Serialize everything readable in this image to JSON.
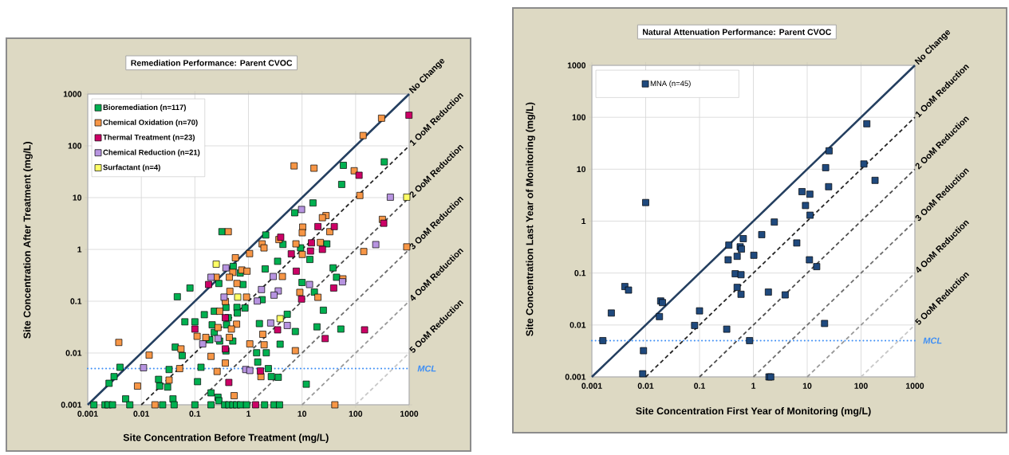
{
  "chart_data": [
    {
      "type": "scatter",
      "title": "Remediation Performance: Parent CVOC",
      "xlabel": "Site Concentration Before Treatment (mg/L)",
      "ylabel": "Site Concentration After Treatment (mg/L)",
      "log": "xy",
      "grid": true,
      "legend": "top left",
      "marker": "square",
      "xlim": [
        0.001,
        1000
      ],
      "ylim": [
        0.001,
        1000
      ],
      "xticks": [
        0.001,
        0.01,
        0.1,
        1,
        10,
        100,
        1000
      ],
      "yticks": [
        0.001,
        0.01,
        0.1,
        1,
        10,
        100,
        1000
      ],
      "series": [
        {
          "name": "Bioremediation (n=117)",
          "color": "#00b050",
          "x": [
            0.32,
            0.52,
            0.7,
            0.28,
            0.79,
            0.081,
            0.047,
            0.38,
            0.61,
            0.86,
            0.23,
            0.62,
            0.15,
            0.42,
            0.065,
            0.1,
            0.21,
            0.39,
            0.23,
            0.19,
            0.29,
            0.51,
            0.043,
            0.38,
            0.058,
            0.004,
            0.13,
            0.033,
            0.0031,
            0.021,
            0.112,
            0.0025,
            0.022,
            0.031,
            0.2,
            0.27,
            0.0051,
            0.039,
            0.28,
            0.0013,
            0.0021,
            0.0024,
            0.0029,
            0.0061,
            0.025,
            0.041,
            0.1,
            0.2,
            0.36,
            0.43,
            0.51,
            0.6,
            0.71,
            0.92,
            59,
            343,
            55,
            16,
            7.3,
            2.1,
            4.4,
            9.4,
            29,
            14,
            3.5,
            38,
            44,
            2.05,
            10,
            17,
            1.8,
            25,
            5.3,
            7.5,
            19,
            53,
            1.6,
            3.9,
            1.42,
            2.15,
            1.49,
            2.35,
            2.67,
            3.6,
            12,
            2.0,
            3.0,
            3.8
          ],
          "values": [
            2.2,
            0.47,
            0.35,
            0.22,
            0.21,
            0.18,
            0.122,
            0.076,
            0.076,
            0.074,
            0.064,
            0.059,
            0.055,
            0.048,
            0.04,
            0.04,
            0.035,
            0.035,
            0.025,
            0.018,
            0.017,
            0.017,
            0.013,
            0.011,
            0.0089,
            0.0053,
            0.0053,
            0.0048,
            0.0035,
            0.0031,
            0.0028,
            0.0026,
            0.0023,
            0.0022,
            0.0017,
            0.0014,
            0.0013,
            0.0013,
            0.0012,
            0.001,
            0.001,
            0.001,
            0.001,
            0.001,
            0.001,
            0.001,
            0.001,
            0.001,
            0.001,
            0.001,
            0.001,
            0.001,
            0.001,
            0.001,
            42,
            49,
            18,
            7.9,
            5.1,
            1.9,
            1.25,
            1.07,
            1.28,
            0.64,
            0.59,
            0.44,
            0.29,
            0.42,
            0.23,
            0.15,
            0.107,
            0.067,
            0.056,
            0.026,
            0.032,
            0.029,
            0.037,
            0.0148,
            0.0101,
            0.0101,
            0.0067,
            0.005,
            0.0035,
            0.0034,
            0.0025,
            0.001,
            0.001,
            0.001
          ]
        },
        {
          "name": "Chemical Oxidation (n=70)",
          "color": "#f79646",
          "x": [
            0.42,
            0.57,
            0.51,
            0.75,
            0.94,
            0.25,
            0.44,
            0.61,
            0.45,
            0.92,
            0.37,
            0.29,
            0.6,
            0.27,
            0.48,
            0.11,
            0.16,
            0.44,
            0.0038,
            0.055,
            0.014,
            0.2,
            0.37,
            0.052,
            0.26,
            0.033,
            0.0085,
            0.54,
            0.018,
            305,
            138,
            7.1,
            16.7,
            94,
            120,
            28,
            24,
            10.3,
            10.1,
            33,
            316,
            3.7,
            7.7,
            22,
            10.1,
            1.05,
            1.8,
            1.95,
            142,
            900,
            58,
            4.3,
            9.1,
            19.8,
            1.85,
            1.06,
            1.96,
            7.5,
            1.71,
            41
          ],
          "values": [
            2.2,
            0.69,
            0.36,
            0.4,
            0.38,
            0.29,
            0.29,
            0.22,
            0.155,
            0.12,
            0.099,
            0.064,
            0.036,
            0.031,
            0.029,
            0.021,
            0.02,
            0.02,
            0.016,
            0.012,
            0.0091,
            0.0086,
            0.0064,
            0.005,
            0.0044,
            0.003,
            0.0023,
            0.0015,
            0.001,
            341,
            158,
            41,
            37,
            33,
            11,
            4.5,
            4.1,
            2.7,
            2.1,
            2.2,
            3.8,
            1.55,
            1.28,
            1.36,
            0.8,
            0.83,
            1.28,
            1.07,
            0.91,
            1.12,
            0.27,
            0.3,
            0.148,
            0.119,
            0.023,
            0.015,
            0.0144,
            0.0111,
            0.0035,
            0.001
          ]
        },
        {
          "name": "Thermal Treatment (n=23)",
          "color": "#cc0066",
          "x": [
            0.18,
            0.37,
            0.1,
            0.37,
            0.43,
            990,
            116,
            19.8,
            40,
            335,
            4.0,
            15,
            24,
            14.4,
            6.3,
            7.8,
            39,
            9.8,
            147,
            3.5,
            27,
            1.67,
            1.36
          ],
          "values": [
            0.21,
            0.048,
            0.029,
            0.012,
            0.0027,
            390,
            27,
            2.76,
            2.76,
            3.2,
            1.72,
            1.34,
            1.0,
            0.93,
            0.82,
            0.38,
            0.18,
            0.11,
            0.028,
            0.028,
            0.019,
            0.0045,
            0.001
          ]
        },
        {
          "name": "Chemical Reduction (n=21)",
          "color": "#b794e0",
          "x": [
            0.38,
            0.2,
            0.35,
            0.27,
            0.14,
            0.011,
            0.89,
            9.8,
            445,
            238,
            57,
            2.9,
            13.8,
            1.75,
            3.6,
            3.0,
            1.46,
            5.3,
            2.6,
            1.06
          ],
          "values": [
            0.44,
            0.29,
            0.12,
            0.019,
            0.015,
            0.0052,
            0.0048,
            5.9,
            10.2,
            1.24,
            0.237,
            0.3,
            0.21,
            0.168,
            0.158,
            0.131,
            0.101,
            0.034,
            0.038,
            0.0046
          ]
        },
        {
          "name": "Surfactant (n=4)",
          "color": "#ffff66",
          "x": [
            0.25,
            0.63,
            3.9,
            900
          ],
          "values": [
            0.52,
            0.12,
            0.046,
            10.2
          ]
        },
        {
          "type": "line",
          "marker": "none",
          "color": "#243f60",
          "line_style": "solid",
          "x": [
            0.001,
            1000
          ],
          "values": [
            0.001,
            1000
          ]
        },
        {
          "type": "line",
          "marker": "none",
          "color": "#262626",
          "line_style": "dashed",
          "x": [
            0.01,
            1000
          ],
          "values": [
            0.001,
            100
          ]
        },
        {
          "type": "line",
          "marker": "none",
          "color": "#4d4d4d",
          "line_style": "dashed",
          "x": [
            0.1,
            1000
          ],
          "values": [
            0.001,
            10
          ]
        },
        {
          "type": "line",
          "marker": "none",
          "color": "#6e6e6e",
          "line_style": "dashed",
          "x": [
            1,
            1000
          ],
          "values": [
            0.001,
            1
          ]
        },
        {
          "type": "line",
          "marker": "none",
          "color": "#999999",
          "line_style": "dashed",
          "x": [
            10,
            1000
          ],
          "values": [
            0.001,
            0.1
          ]
        },
        {
          "type": "line",
          "marker": "none",
          "color": "#c8c8c8",
          "line_style": "dashed",
          "x": [
            100,
            1000
          ],
          "values": [
            0.001,
            0.01
          ]
        }
      ],
      "annotations": [
        "No Change",
        "1 OoM Reduction",
        "2 OoM Reduction",
        "3 OoM Reduction",
        "4 OoM Reduction",
        "5 OoM Reduction"
      ],
      "ref_lines": [
        {
          "axis": "y",
          "value": 0.005,
          "label": "MCL",
          "color": "#3d8ef5",
          "line_style": "dotted"
        }
      ]
    },
    {
      "type": "scatter",
      "title": "Natural Attenuation Performance: Parent CVOC",
      "xlabel": "Site Concentration First Year of Monitoring (mg/L)",
      "ylabel": "Site Concentration Last Year of Monitoring (mg/L)",
      "log": "xy",
      "grid": true,
      "legend": "top left",
      "marker": "square",
      "xlim": [
        0.001,
        1000
      ],
      "ylim": [
        0.001,
        1000
      ],
      "xticks": [
        0.001,
        0.01,
        0.1,
        1,
        10,
        100,
        1000
      ],
      "yticks": [
        0.001,
        0.01,
        0.1,
        1,
        10,
        100,
        1000
      ],
      "series": [
        {
          "name": "MNA (n=45)",
          "color": "#1f497d",
          "x": [
            0.0016,
            0.0023,
            0.0041,
            0.0048,
            0.01,
            0.0091,
            0.0088,
            0.019,
            0.0205,
            0.018,
            0.081,
            0.1,
            0.32,
            0.35,
            0.34,
            0.46,
            0.5,
            0.5,
            0.57,
            0.6,
            0.59,
            0.59,
            0.65,
            0.85,
            1.02,
            1.43,
            1.9,
            2.45,
            1.95,
            2.1,
            128,
            25.5,
            113,
            22,
            182,
            25,
            8,
            11.2,
            9.3,
            11.3,
            6.4,
            11,
            15,
            3.9,
            21
          ],
          "values": [
            0.005,
            0.017,
            0.055,
            0.047,
            2.28,
            0.0032,
            0.00115,
            0.029,
            0.027,
            0.0145,
            0.0098,
            0.0187,
            0.0083,
            0.345,
            0.18,
            0.097,
            0.21,
            0.053,
            0.32,
            0.29,
            0.093,
            0.039,
            0.46,
            0.005,
            0.22,
            0.55,
            0.043,
            0.96,
            0.001,
            0.001,
            75,
            22.6,
            12.6,
            10.7,
            6.1,
            4.6,
            3.7,
            3.3,
            2.0,
            1.3,
            0.38,
            0.18,
            0.133,
            0.038,
            0.0107
          ]
        },
        {
          "type": "line",
          "marker": "none",
          "color": "#243f60",
          "line_style": "solid",
          "x": [
            0.001,
            1000
          ],
          "values": [
            0.001,
            1000
          ]
        },
        {
          "type": "line",
          "marker": "none",
          "color": "#262626",
          "line_style": "dashed",
          "x": [
            0.01,
            1000
          ],
          "values": [
            0.001,
            100
          ]
        },
        {
          "type": "line",
          "marker": "none",
          "color": "#4d4d4d",
          "line_style": "dashed",
          "x": [
            0.1,
            1000
          ],
          "values": [
            0.001,
            10
          ]
        },
        {
          "type": "line",
          "marker": "none",
          "color": "#6e6e6e",
          "line_style": "dashed",
          "x": [
            1,
            1000
          ],
          "values": [
            0.001,
            1
          ]
        },
        {
          "type": "line",
          "marker": "none",
          "color": "#999999",
          "line_style": "dashed",
          "x": [
            10,
            1000
          ],
          "values": [
            0.001,
            0.1
          ]
        },
        {
          "type": "line",
          "marker": "none",
          "color": "#c8c8c8",
          "line_style": "dashed",
          "x": [
            100,
            1000
          ],
          "values": [
            0.001,
            0.01
          ]
        }
      ],
      "annotations": [
        "No Change",
        "1 OoM Reduction",
        "2 OoM Reduction",
        "3 OoM Reduction",
        "4 OoM Reduction",
        "5 OoM Reduction"
      ],
      "ref_lines": [
        {
          "axis": "y",
          "value": 0.005,
          "label": "MCL",
          "color": "#3d8ef5",
          "line_style": "dotted"
        }
      ]
    }
  ]
}
